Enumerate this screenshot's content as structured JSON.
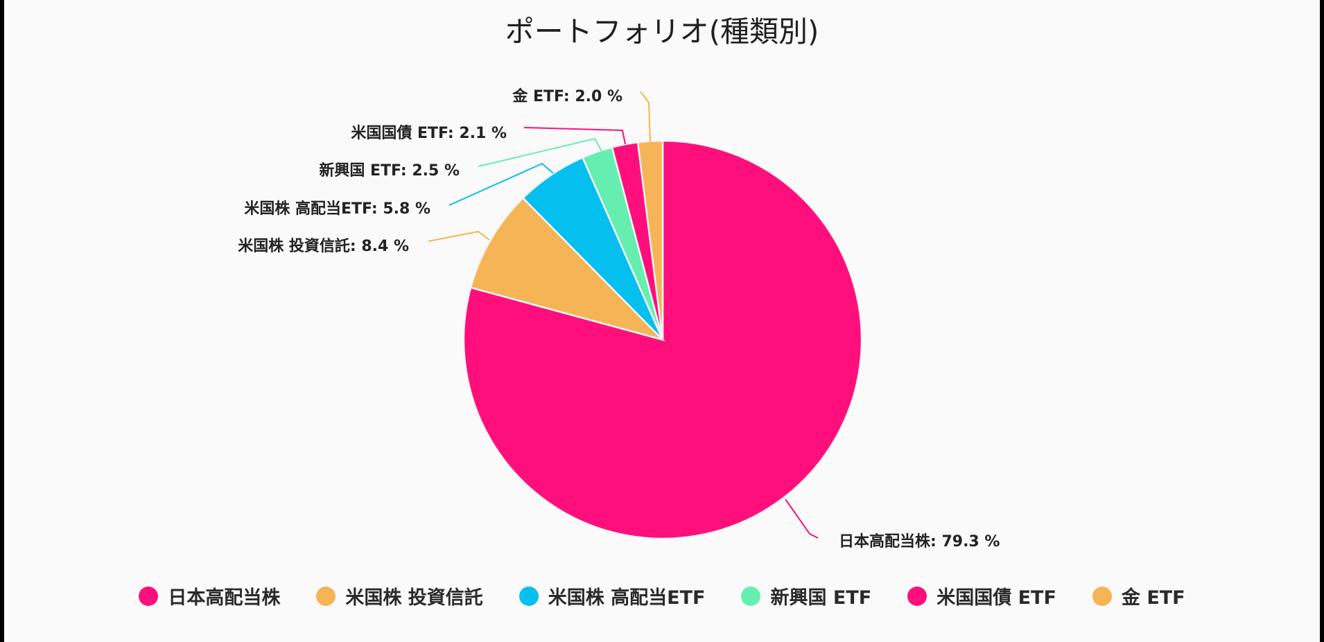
{
  "chart_data": {
    "type": "pie",
    "title": "ポートフォリオ(種類別)",
    "slices": [
      {
        "name": "日本高配当株",
        "value": 79.3,
        "label": "日本高配当株: 79.3 %",
        "color": "#ff0f7b"
      },
      {
        "name": "米国株 投資信託",
        "value": 8.4,
        "label": "米国株 投資信託: 8.4 %",
        "color": "#f5b556"
      },
      {
        "name": "米国株 高配当ETF",
        "value": 5.8,
        "label": "米国株 高配当ETF: 5.8 %",
        "color": "#05bfef"
      },
      {
        "name": "新興国 ETF",
        "value": 2.5,
        "label": "新興国 ETF: 2.5 %",
        "color": "#64efb0"
      },
      {
        "name": "米国国債 ETF",
        "value": 2.1,
        "label": "米国国債 ETF: 2.1 %",
        "color": "#ff0f7b"
      },
      {
        "name": "金 ETF",
        "value": 2.0,
        "label": "金 ETF: 2.0 %",
        "color": "#f5b556"
      }
    ],
    "legend_position": "bottom"
  }
}
